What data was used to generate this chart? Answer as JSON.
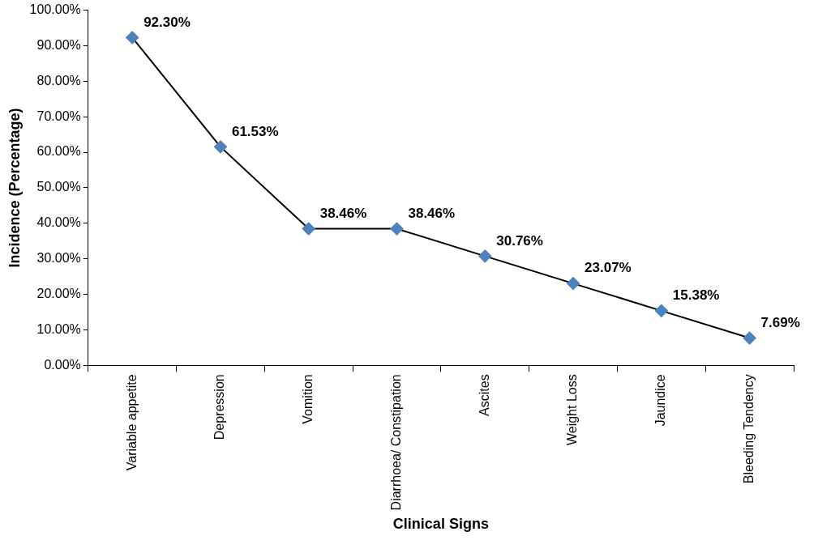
{
  "chart_data": {
    "type": "line",
    "xlabel": "Clinical Signs",
    "ylabel": "Incidence (Percentage)",
    "categories": [
      "Variable appetite",
      "Depression",
      "Vomition",
      "Diarrhoea/ Constipation",
      "Ascites",
      "Weight Loss",
      "Jaundice",
      "Bleeding Tendency"
    ],
    "series": [
      {
        "color": "#4f81bd",
        "values": [
          92.3,
          61.53,
          38.46,
          38.46,
          30.76,
          23.07,
          15.38,
          7.69
        ],
        "value_labels": [
          "92.30%",
          "61.53%",
          "38.46%",
          "38.46%",
          "30.76%",
          "23.07%",
          "15.38%",
          "7.69%"
        ]
      }
    ],
    "ylim": [
      0,
      100
    ],
    "yticks": [
      {
        "value": 0,
        "label": "0.00%"
      },
      {
        "value": 10,
        "label": "10.00%"
      },
      {
        "value": 20,
        "label": "20.00%"
      },
      {
        "value": 30,
        "label": "30.00%"
      },
      {
        "value": 40,
        "label": "40.00%"
      },
      {
        "value": 50,
        "label": "50.00%"
      },
      {
        "value": 60,
        "label": "60.00%"
      },
      {
        "value": 70,
        "label": "70.00%"
      },
      {
        "value": 80,
        "label": "80.00%"
      },
      {
        "value": 90,
        "label": "90.00%"
      },
      {
        "value": 100,
        "label": "100.00%"
      }
    ],
    "grid": false,
    "legend": false,
    "marker": "diamond",
    "line_style": "solid"
  }
}
